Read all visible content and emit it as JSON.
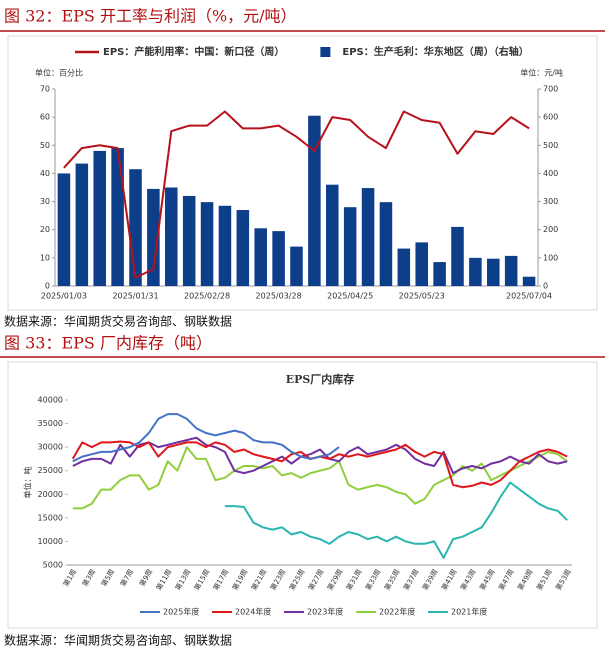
{
  "figures": [
    {
      "caption": "图 32：EPS 开工率与利润（%，元/吨）",
      "source": "数据来源：华闻期货交易咨询部、钢联数据"
    },
    {
      "caption": "图 33：EPS 厂内库存（吨）",
      "source": "数据来源：华闻期货交易咨询部、钢联数据"
    }
  ],
  "chart_data": [
    {
      "type": "combo",
      "y_unit_label": "单位：百分比",
      "y2_unit_label": "单位：元/吨",
      "legend": "top",
      "categories": [
        "2025/01/03",
        null,
        null,
        null,
        "2025/01/31",
        null,
        null,
        null,
        "2025/02/28",
        null,
        null,
        null,
        "2025/03/28",
        null,
        null,
        null,
        "2025/04/25",
        null,
        null,
        null,
        "2025/05/23",
        null,
        null,
        null,
        null,
        null,
        "2025/07/04"
      ],
      "series": [
        {
          "name": "EPS：产能利用率：中国：新口径（周）",
          "type": "line",
          "color": "#b5121b",
          "values": [
            42,
            49,
            50,
            49,
            3,
            6,
            55,
            57,
            57,
            62,
            56,
            56,
            57,
            53,
            48,
            60,
            59,
            53,
            49,
            62,
            59,
            58,
            47,
            55,
            54,
            60,
            56
          ]
        },
        {
          "name": "EPS：生产毛利：华东地区（周）（右轴）",
          "type": "bar",
          "axis": "y2",
          "color": "#0d3e8a",
          "values": [
            400,
            435,
            480,
            490,
            415,
            345,
            350,
            320,
            298,
            285,
            270,
            205,
            195,
            140,
            605,
            360,
            280,
            348,
            298,
            133,
            155,
            85,
            210,
            100,
            97,
            107,
            33
          ]
        }
      ],
      "ylim": [
        0,
        70
      ],
      "yticks": [
        0,
        10,
        20,
        30,
        40,
        50,
        60,
        70
      ],
      "y2lim": [
        0,
        700
      ],
      "y2ticks": [
        0,
        100,
        200,
        300,
        400,
        500,
        600,
        700
      ]
    },
    {
      "type": "line",
      "title": "EPS厂内库存",
      "y_label": "单位：吨",
      "legend": "bottom",
      "categories": [
        "第1周",
        null,
        "第3周",
        null,
        "第5周",
        null,
        "第7周",
        null,
        "第9周",
        null,
        "第11周",
        null,
        "第13周",
        null,
        "第15周",
        null,
        "第17周",
        null,
        "第19周",
        null,
        "第21周",
        null,
        "第23周",
        null,
        "第25周",
        null,
        "第27周",
        null,
        "第29周",
        null,
        "第31周",
        null,
        "第33周",
        null,
        "第35周",
        null,
        "第37周",
        null,
        "第39周",
        null,
        "第41周",
        null,
        "第43周",
        null,
        "第45周",
        null,
        "第47周",
        null,
        "第49周",
        null,
        "第51周",
        null,
        "第53周"
      ],
      "series": [
        {
          "name": "2025年度",
          "color": "#4472c4",
          "values": [
            27000,
            28000,
            28500,
            29000,
            29000,
            29500,
            30000,
            31000,
            33000,
            36000,
            37000,
            37000,
            36000,
            34000,
            33000,
            32500,
            33000,
            33500,
            33000,
            31500,
            31000,
            31000,
            30500,
            29000,
            28000,
            27500,
            28000,
            28500,
            30000,
            null,
            null,
            null,
            null,
            null,
            null,
            null,
            null,
            null,
            null,
            null,
            null,
            null,
            null,
            null,
            null,
            null,
            null,
            null,
            null,
            null,
            null,
            null,
            null
          ]
        },
        {
          "name": "2024年度",
          "color": "#e0161b",
          "values": [
            27500,
            31000,
            30000,
            31000,
            31000,
            31200,
            31000,
            30000,
            31000,
            28000,
            30000,
            30500,
            31000,
            31000,
            30000,
            31000,
            30500,
            29000,
            29500,
            28500,
            28000,
            27500,
            27000,
            28500,
            29000,
            27500,
            28000,
            27500,
            28500,
            28000,
            28500,
            28000,
            28500,
            29000,
            29500,
            30500,
            29000,
            28000,
            29000,
            28500,
            22000,
            21500,
            21800,
            22500,
            22000,
            23000,
            25000,
            27000,
            28000,
            29000,
            29500,
            29000,
            28000
          ]
        },
        {
          "name": "2023年度",
          "color": "#7030a0",
          "values": [
            26000,
            27000,
            27500,
            27500,
            26500,
            30500,
            28000,
            30500,
            31000,
            30000,
            30500,
            31000,
            31500,
            32000,
            30500,
            30000,
            29000,
            25000,
            24500,
            25000,
            26000,
            27000,
            28000,
            26500,
            28000,
            28500,
            29500,
            27500,
            27000,
            29000,
            30000,
            28500,
            29000,
            29500,
            30500,
            29500,
            27500,
            26500,
            26000,
            29000,
            24500,
            25500,
            26000,
            25500,
            26500,
            27000,
            28000,
            27000,
            26500,
            28500,
            27000,
            26500,
            27000
          ]
        },
        {
          "name": "2022年度",
          "color": "#8fce3d",
          "values": [
            17000,
            17000,
            18000,
            21000,
            21000,
            23000,
            24000,
            24000,
            21000,
            22000,
            27000,
            25000,
            30000,
            27500,
            27500,
            23000,
            23500,
            25000,
            26000,
            26000,
            25500,
            26000,
            24000,
            24500,
            23500,
            24500,
            25000,
            25500,
            27000,
            22000,
            21000,
            21500,
            22000,
            21500,
            20500,
            20000,
            18000,
            19000,
            22000,
            23000,
            24000,
            26000,
            25000,
            26500,
            23000,
            24000,
            25000,
            26000,
            27000,
            28000,
            29000,
            28500,
            27000
          ]
        },
        {
          "name": "2021年度",
          "color": "#2bb5b0",
          "values": [
            null,
            null,
            null,
            null,
            null,
            null,
            null,
            null,
            null,
            null,
            null,
            null,
            null,
            null,
            null,
            null,
            17500,
            17500,
            17300,
            14000,
            13000,
            12500,
            13000,
            11500,
            12000,
            11000,
            10500,
            9500,
            11000,
            12000,
            11500,
            10500,
            11000,
            10000,
            11000,
            10000,
            9500,
            9500,
            10000,
            6500,
            10500,
            11000,
            12000,
            13000,
            16000,
            19500,
            22500,
            21000,
            19500,
            18000,
            17000,
            16500,
            14500
          ]
        }
      ],
      "ylim": [
        5000,
        40000
      ],
      "yticks": [
        5000,
        10000,
        15000,
        20000,
        25000,
        30000,
        35000,
        40000
      ]
    }
  ]
}
